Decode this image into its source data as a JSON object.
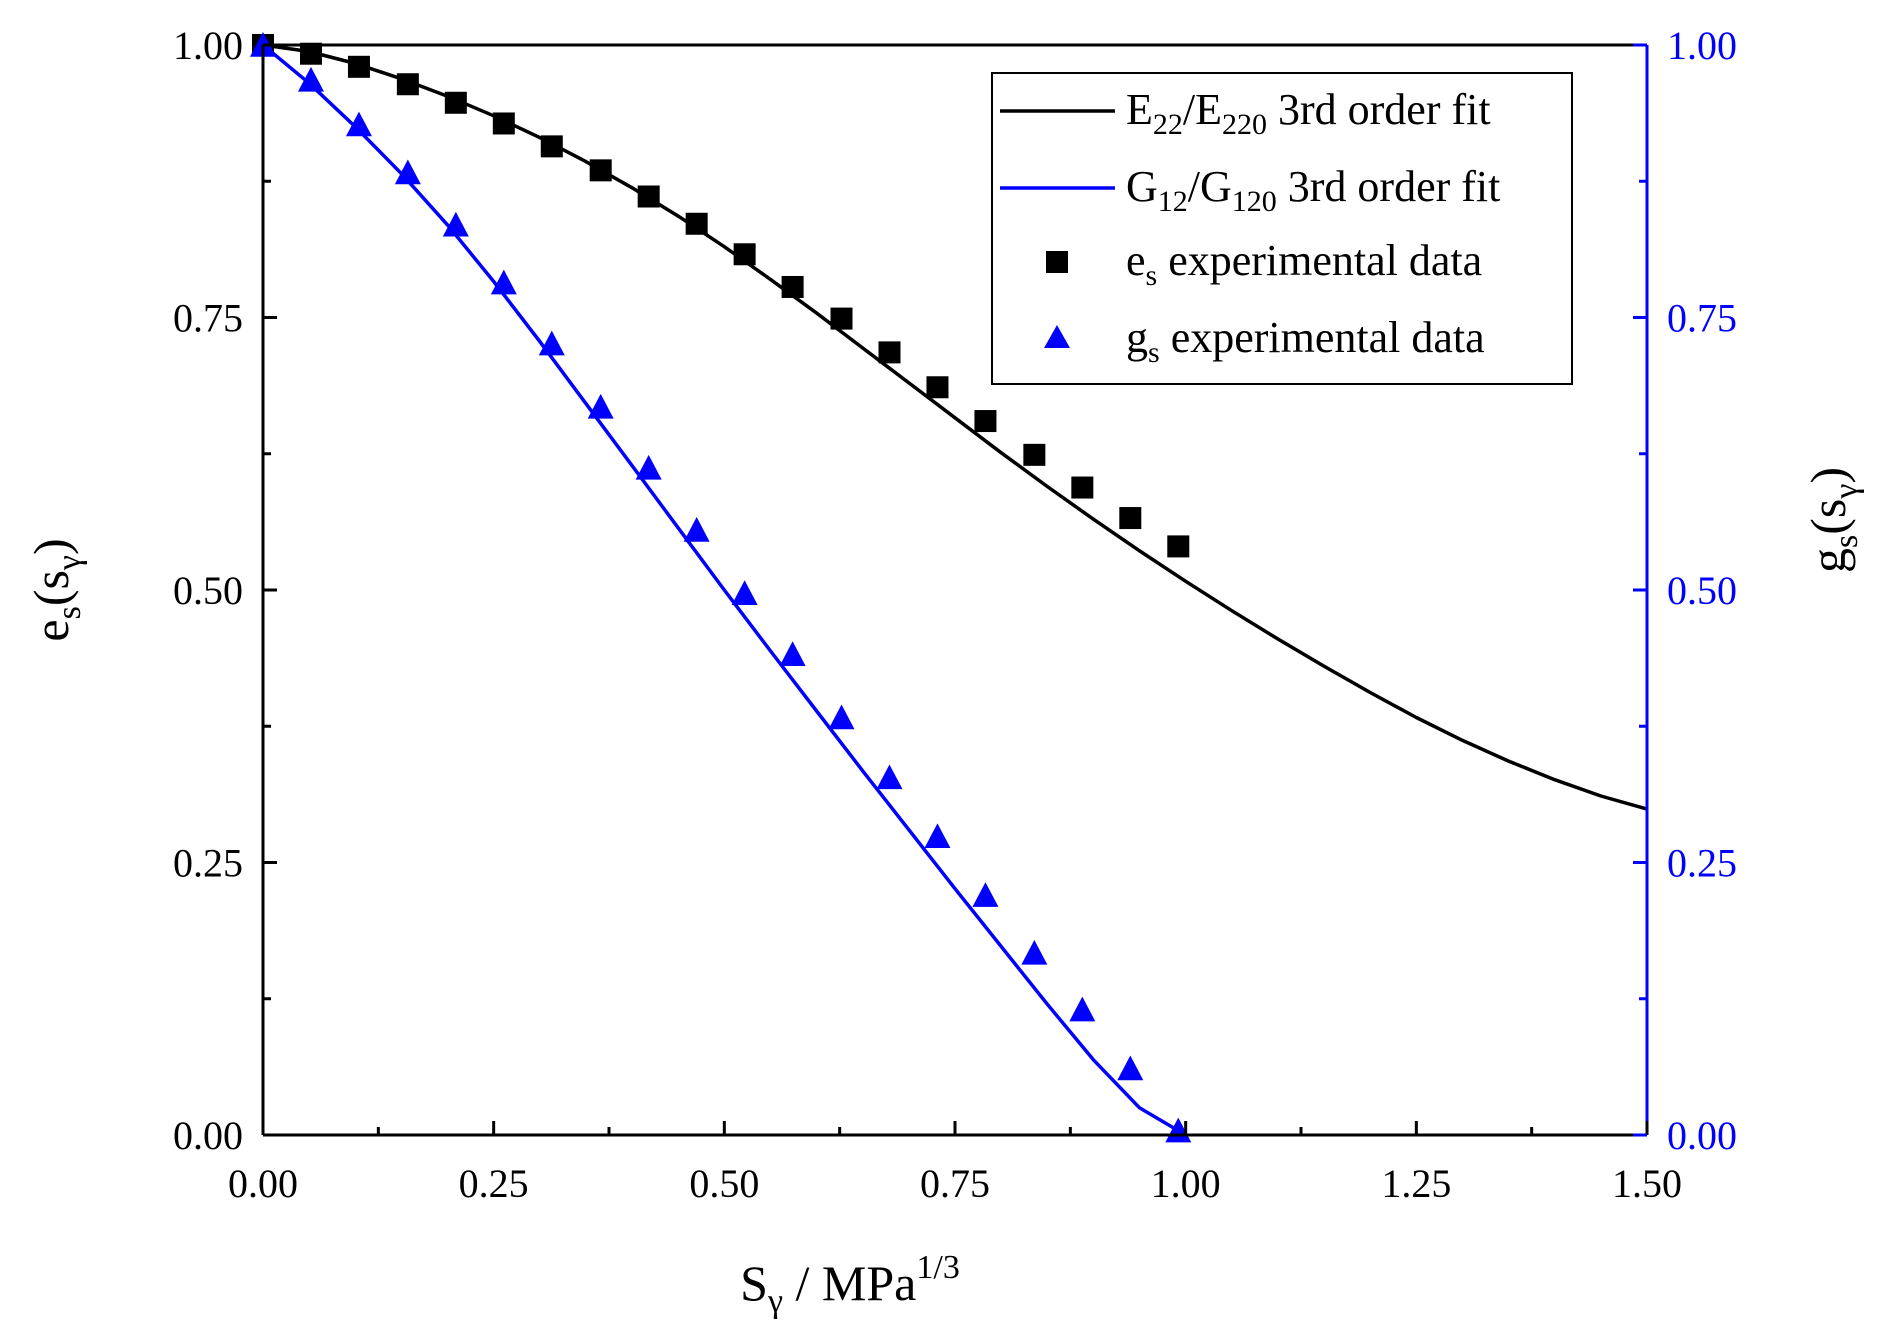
{
  "chart_data": {
    "type": "line",
    "title": "",
    "xlabel": {
      "base": "S",
      "sub": "γ",
      "rest": " / MPa",
      "sup": "1/3"
    },
    "ylabel_left": {
      "base": "e",
      "sub": "s",
      "open": "(s",
      "sub2": "γ",
      "close": ")"
    },
    "ylabel_right": {
      "base": "g",
      "sub": "s",
      "open": "(s",
      "sub2": "γ",
      "close": ")"
    },
    "xlim": [
      0,
      1.5
    ],
    "ylim": [
      0,
      1
    ],
    "x_ticks": [
      {
        "value": 0,
        "label": "0.00"
      },
      {
        "value": 0.25,
        "label": "0.25"
      },
      {
        "value": 0.5,
        "label": "0.50"
      },
      {
        "value": 0.75,
        "label": "0.75"
      },
      {
        "value": 1,
        "label": "1.00"
      },
      {
        "value": 1.25,
        "label": "1.25"
      },
      {
        "value": 1.5,
        "label": "1.50"
      }
    ],
    "y_ticks": [
      {
        "value": 0,
        "label": "0.00"
      },
      {
        "value": 0.25,
        "label": "0.25"
      },
      {
        "value": 0.5,
        "label": "0.50"
      },
      {
        "value": 0.75,
        "label": "0.75"
      },
      {
        "value": 1,
        "label": "1.00"
      }
    ],
    "legend_position": "top-right",
    "colors": {
      "es": "#000000",
      "gs": "#0000ff",
      "axis": "#000000",
      "right_axis": "#0000ff"
    },
    "series": [
      {
        "id": "es_fit",
        "name": {
          "a": "E",
          "a_sub": "22",
          "slash": "/E",
          "b_sub": "220",
          "rest": " 3rd order fit"
        },
        "kind": "line",
        "color": "#000000",
        "x": [
          0,
          0.05,
          0.1,
          0.15,
          0.2,
          0.25,
          0.3,
          0.35,
          0.4,
          0.45,
          0.5,
          0.55,
          0.6,
          0.65,
          0.7,
          0.75,
          0.8,
          0.85,
          0.9,
          0.95,
          1.0,
          1.05,
          1.1,
          1.15,
          1.2,
          1.25,
          1.3,
          1.35,
          1.4,
          1.45,
          1.5
        ],
        "y": [
          1.0,
          0.994,
          0.983,
          0.969,
          0.953,
          0.935,
          0.915,
          0.893,
          0.869,
          0.843,
          0.815,
          0.785,
          0.754,
          0.722,
          0.69,
          0.658,
          0.626,
          0.595,
          0.565,
          0.536,
          0.508,
          0.481,
          0.455,
          0.43,
          0.406,
          0.383,
          0.362,
          0.343,
          0.326,
          0.311,
          0.299
        ]
      },
      {
        "id": "gs_fit",
        "name": {
          "a": "G",
          "a_sub": "12",
          "slash": "/G",
          "b_sub": "120",
          "rest": " 3rd order fit"
        },
        "kind": "line",
        "color": "#0000ff",
        "x": [
          0,
          0.05,
          0.1,
          0.15,
          0.2,
          0.25,
          0.3,
          0.35,
          0.4,
          0.45,
          0.5,
          0.55,
          0.6,
          0.65,
          0.7,
          0.75,
          0.8,
          0.85,
          0.9,
          0.95,
          1.0
        ],
        "y": [
          1.0,
          0.965,
          0.925,
          0.882,
          0.835,
          0.783,
          0.728,
          0.671,
          0.614,
          0.557,
          0.5,
          0.444,
          0.389,
          0.334,
          0.28,
          0.226,
          0.173,
          0.12,
          0.069,
          0.025,
          0.0
        ]
      },
      {
        "id": "es_exp",
        "name": {
          "a": "e",
          "a_sub": "s",
          "rest": " experimental data"
        },
        "kind": "scatter",
        "marker": "square",
        "color": "#000000",
        "x": [
          0,
          0.052,
          0.104,
          0.157,
          0.209,
          0.261,
          0.313,
          0.366,
          0.418,
          0.47,
          0.522,
          0.574,
          0.627,
          0.679,
          0.731,
          0.783,
          0.836,
          0.888,
          0.94,
          0.992
        ],
        "y": [
          1.0,
          0.992,
          0.98,
          0.964,
          0.947,
          0.928,
          0.907,
          0.885,
          0.861,
          0.836,
          0.808,
          0.778,
          0.749,
          0.718,
          0.686,
          0.655,
          0.624,
          0.594,
          0.566,
          0.54
        ]
      },
      {
        "id": "gs_exp",
        "name": {
          "a": "g",
          "a_sub": "s",
          "rest": " experimental data"
        },
        "kind": "scatter",
        "marker": "triangle",
        "color": "#0000ff",
        "x": [
          0,
          0.052,
          0.104,
          0.157,
          0.209,
          0.261,
          0.313,
          0.366,
          0.418,
          0.47,
          0.522,
          0.574,
          0.627,
          0.679,
          0.731,
          0.783,
          0.836,
          0.888,
          0.94,
          0.992
        ],
        "y": [
          1.0,
          0.968,
          0.927,
          0.883,
          0.835,
          0.782,
          0.726,
          0.668,
          0.612,
          0.555,
          0.497,
          0.441,
          0.383,
          0.328,
          0.274,
          0.22,
          0.167,
          0.115,
          0.061,
          0.004
        ]
      }
    ]
  }
}
